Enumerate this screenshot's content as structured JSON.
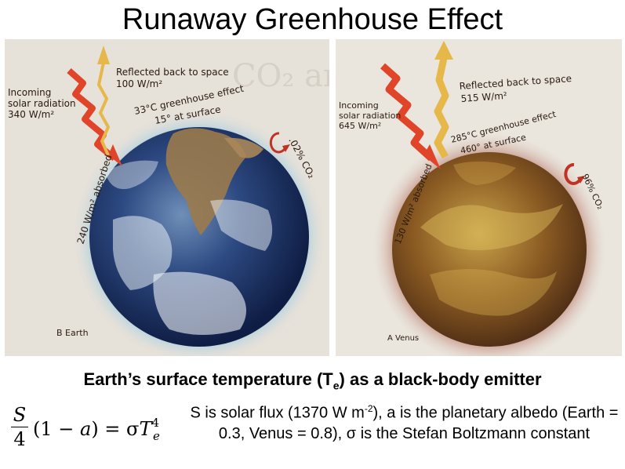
{
  "title": "Runaway Greenhouse Effect",
  "earth_panel": {
    "reflected_label": "Reflected back to space",
    "reflected_value": "100 W/m²",
    "incoming_line1": "Incoming",
    "incoming_line2": "solar radiation",
    "incoming_value": "340 W/m²",
    "greenhouse_label": "33°C greenhouse effect",
    "surface_label": "15° at surface",
    "absorbed_label": "240 W/m² absorbed",
    "co2_label": ".02% CO₂",
    "caption": "B Earth"
  },
  "venus_panel": {
    "reflected_label": "Reflected back to space",
    "reflected_value": "515 W/m²",
    "incoming_line1": "Incoming",
    "incoming_line2": "solar radiation",
    "incoming_value": "645 W/m²",
    "greenhouse_label": "285°C greenhouse effect",
    "surface_label": "460° at surface",
    "absorbed_label": "130 W/m² absorbed",
    "co2_label": "96% CO₂",
    "caption": "A Venus"
  },
  "subtitle": {
    "before": "Earth’s surface temperature (T",
    "subscript": "e",
    "after": ") as a black-body emitter"
  },
  "equation": {
    "numerator": "S",
    "denominator": "4",
    "middle": "(1 − ",
    "albedo_var": "a",
    "equals": ") = σ",
    "temp_var": "T",
    "power": "4",
    "temp_sub": "e"
  },
  "description": {
    "part1": "S is solar flux (1370 W m",
    "exponent": "-2",
    "part2": "), a is the planetary albedo (Earth = 0.3, Venus = 0.8), σ is the Stefan Boltzmann constant"
  },
  "colors": {
    "earth_background": "#e6e1d9",
    "venus_background": "#eae6de",
    "earth_halo": "#7ec3e6",
    "venus_halo": "#c89a8c",
    "incoming_arrow": "#e0452a",
    "reflected_arrow": "#e6b84a",
    "co2_arrow": "#c23224"
  }
}
